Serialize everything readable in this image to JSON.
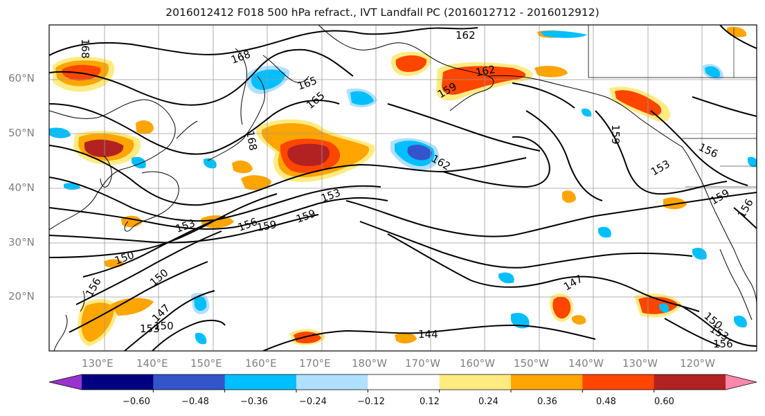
{
  "title": "2016012412 F018 500 hPa refract., IVT Landfall PC (2016012712 - 2016012912)",
  "lat_labels": [
    "60°N",
    "50°N",
    "40°N",
    "30°N",
    "20°N"
  ],
  "lon_labels": [
    "130°E",
    "140°E",
    "150°E",
    "160°E",
    "170°E",
    "180°W",
    "170°W",
    "160°W",
    "150°W",
    "140°W",
    "130°W",
    "120°W"
  ],
  "contour_labels": [
    "168",
    "168",
    "165",
    "165",
    "162",
    "162",
    "159",
    "168",
    "162",
    "159",
    "156",
    "153",
    "159",
    "156",
    "153",
    "156",
    "159",
    "159",
    "153",
    "150",
    "150",
    "156",
    "147",
    "153",
    "150",
    "147",
    "144",
    "150",
    "153",
    "156"
  ],
  "colorbar": {
    "colors": [
      "#9933cc",
      "#000080",
      "#3355cc",
      "#00bfff",
      "#b0e0ff",
      "#ffffff",
      "#ffeb80",
      "#ffa500",
      "#ff4500",
      "#b22222",
      "#ff88aa"
    ],
    "tick_labels": [
      "−0.60",
      "−0.48",
      "−0.36",
      "−0.24",
      "−0.12",
      "0.12",
      "0.24",
      "0.36",
      "0.48",
      "0.60"
    ]
  }
}
